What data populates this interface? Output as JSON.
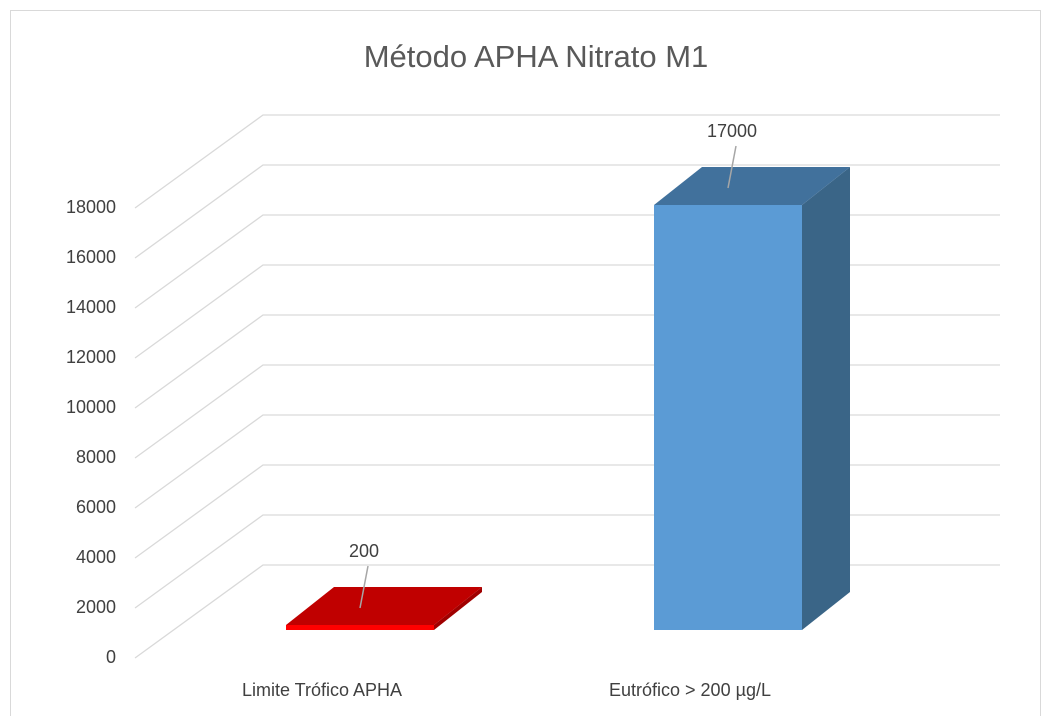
{
  "chart_data": {
    "type": "bar3d",
    "title": "Método APHA Nitrato M1",
    "categories": [
      "Limite Trófico APHA",
      "Eutrófico > 200 µg/L"
    ],
    "values": [
      200,
      17000
    ],
    "colors": [
      "#c00000",
      "#5b9bd5"
    ],
    "ylim": [
      0,
      18000
    ],
    "yticks": [
      0,
      2000,
      4000,
      6000,
      8000,
      10000,
      12000,
      14000,
      16000,
      18000
    ],
    "grid": true
  }
}
